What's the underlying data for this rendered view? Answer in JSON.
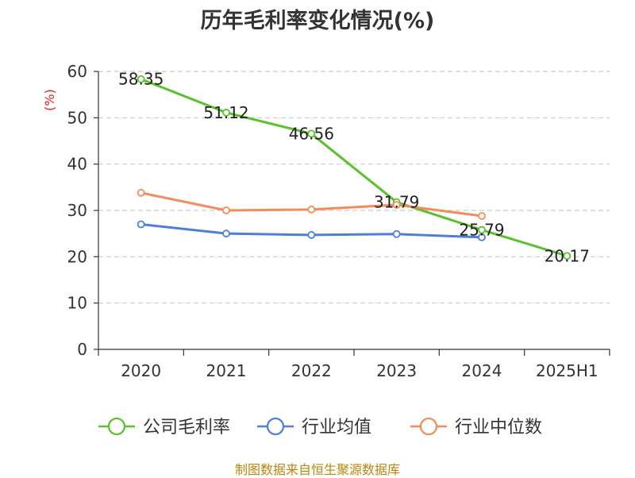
{
  "chart_data": {
    "type": "line",
    "title": "历年毛利率变化情况(%)",
    "ylabel": "(%)",
    "xlabel": "",
    "categories": [
      "2020",
      "2021",
      "2022",
      "2023",
      "2024",
      "2025H1"
    ],
    "ylim": [
      0,
      60
    ],
    "yticks": [
      0,
      10,
      20,
      30,
      40,
      50,
      60
    ],
    "grid": true,
    "legend_position": "bottom",
    "series": [
      {
        "name": "公司毛利率",
        "color": "#5ac12a",
        "values": [
          58.35,
          51.12,
          46.56,
          31.79,
          25.79,
          20.17
        ],
        "labels": [
          "58.35",
          "51.12",
          "46.56",
          "31.79",
          "25.79",
          "20.17"
        ]
      },
      {
        "name": "行业均值",
        "color": "#4d7fd8",
        "values": [
          27.0,
          25.0,
          24.7,
          24.9,
          24.2,
          null
        ]
      },
      {
        "name": "行业中位数",
        "color": "#f28c5a",
        "values": [
          33.8,
          30.0,
          30.2,
          31.2,
          28.8,
          null
        ]
      }
    ]
  },
  "source": "制图数据来自恒生聚源数据库"
}
